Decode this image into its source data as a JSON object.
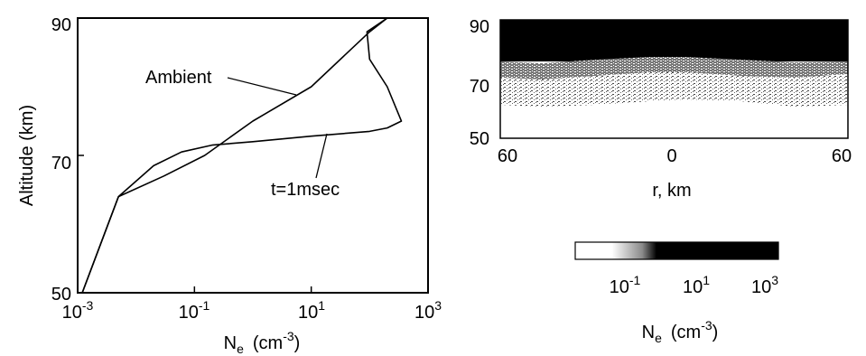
{
  "chart_data": [
    {
      "type": "line",
      "ylabel": "Altitude (km)",
      "xlabel_main": "N",
      "xlabel_sub": "e",
      "xlabel_unit": "(cm",
      "xlabel_unit_exp": "-3",
      "xlabel_unit_close": ")",
      "xscale": "log",
      "xlim": [
        0.001,
        1000
      ],
      "ylim": [
        50,
        90
      ],
      "y_ticks": [
        "90",
        "70",
        "50"
      ],
      "x_ticks": [
        {
          "base": "10",
          "exp": "-3",
          "value": 0.001
        },
        {
          "base": "10",
          "exp": "-1",
          "value": 0.1
        },
        {
          "base": "10",
          "exp": "1",
          "value": 10
        },
        {
          "base": "10",
          "exp": "3",
          "value": 1000
        }
      ],
      "series": [
        {
          "name": "Ambient",
          "points": [
            [
              0.0012,
              50
            ],
            [
              0.005,
              64
            ],
            [
              0.03,
              67
            ],
            [
              0.15,
              70
            ],
            [
              1,
              75
            ],
            [
              10,
              80
            ],
            [
              100,
              88
            ],
            [
              200,
              90
            ]
          ]
        },
        {
          "name": "t=1msec",
          "points": [
            [
              0.0012,
              50
            ],
            [
              0.005,
              64
            ],
            [
              0.02,
              68.5
            ],
            [
              0.06,
              70.5
            ],
            [
              0.2,
              71.5
            ],
            [
              1,
              72
            ],
            [
              10,
              72.8
            ],
            [
              100,
              73.5
            ],
            [
              200,
              74
            ],
            [
              350,
              75
            ],
            [
              200,
              80
            ],
            [
              100,
              84
            ],
            [
              90,
              88
            ],
            [
              200,
              90
            ]
          ]
        }
      ],
      "annotations": [
        {
          "text": "Ambient",
          "series": "Ambient"
        },
        {
          "text": "t=1msec",
          "series": "t=1msec"
        }
      ]
    },
    {
      "type": "heatmap",
      "xlabel": "r, km",
      "x_ticks": [
        "60",
        "0",
        "60"
      ],
      "y_ticks": [
        "90",
        "70",
        "50"
      ],
      "ylim": [
        50,
        90
      ],
      "colorbar": {
        "label_main": "N",
        "label_sub": "e",
        "label_unit": "(cm",
        "label_unit_exp": "-3",
        "label_unit_close": ")",
        "ticks": [
          {
            "base": "10",
            "exp": "-1"
          },
          {
            "base": "10",
            "exp": "1"
          },
          {
            "base": "10",
            "exp": "3"
          }
        ],
        "colors": [
          "#ffffff",
          "#000000"
        ]
      }
    }
  ]
}
